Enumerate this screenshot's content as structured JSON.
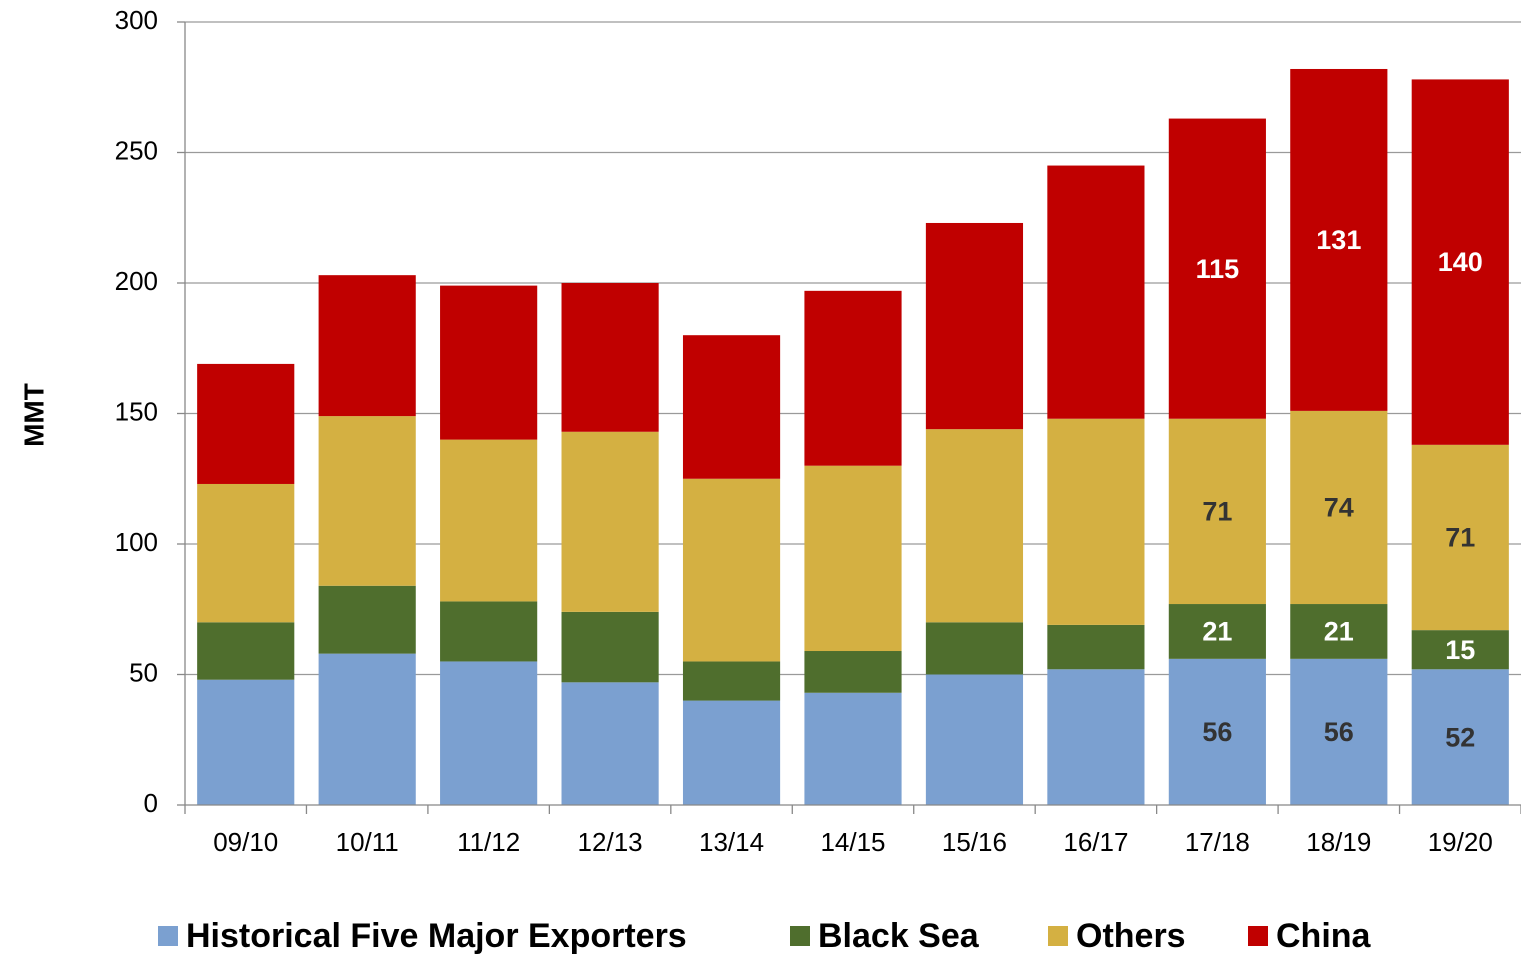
{
  "chart_data": {
    "type": "stacked_bar",
    "y_label": "MMT",
    "categories": [
      "09/10",
      "10/11",
      "11/12",
      "12/13",
      "13/14",
      "14/15",
      "15/16",
      "16/17",
      "17/18",
      "18/19",
      "19/20"
    ],
    "series": [
      {
        "name": "Historical Five Major Exporters",
        "color": "#7ba0d0",
        "label_color": "#333333",
        "values": [
          48,
          58,
          55,
          47,
          40,
          43,
          50,
          52,
          56,
          56,
          52
        ],
        "value_labels": [
          null,
          null,
          null,
          null,
          null,
          null,
          null,
          null,
          56,
          56,
          52
        ]
      },
      {
        "name": "Black Sea",
        "color": "#4f6e2d",
        "label_color": "#ffffff",
        "values": [
          22,
          26,
          23,
          27,
          15,
          16,
          20,
          17,
          21,
          21,
          15
        ],
        "value_labels": [
          null,
          null,
          null,
          null,
          null,
          null,
          null,
          null,
          21,
          21,
          15
        ]
      },
      {
        "name": "Others",
        "color": "#d4b042",
        "label_color": "#333333",
        "values": [
          53,
          65,
          62,
          69,
          70,
          71,
          74,
          79,
          71,
          74,
          71
        ],
        "value_labels": [
          null,
          null,
          null,
          null,
          null,
          null,
          null,
          null,
          71,
          74,
          71
        ]
      },
      {
        "name": "China",
        "color": "#c00000",
        "label_color": "#ffffff",
        "values": [
          46,
          54,
          59,
          57,
          55,
          67,
          79,
          97,
          115,
          131,
          140
        ],
        "value_labels": [
          null,
          null,
          null,
          null,
          null,
          null,
          null,
          null,
          115,
          131,
          140
        ]
      }
    ],
    "ylim": [
      0,
      300
    ],
    "yticks": [
      0,
      50,
      100,
      150,
      200,
      250,
      300
    ],
    "grid": true,
    "legend": "bottom"
  }
}
